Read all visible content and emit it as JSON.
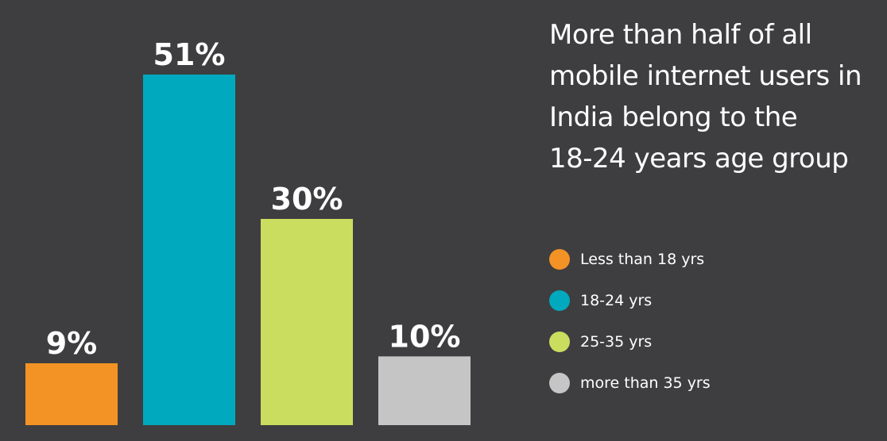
{
  "colors": {
    "background": "#3e3e40",
    "text": "#ffffff"
  },
  "headline": {
    "lines": [
      "More than half of all",
      "mobile internet users in",
      "India belong to the",
      "18-24 years age group"
    ]
  },
  "chart_data": {
    "type": "bar",
    "title": "More than half of all mobile internet users in India belong to the 18-24 years age group",
    "categories": [
      "Less than 18 yrs",
      "18-24 yrs",
      "25-35 yrs",
      "more than 35 yrs"
    ],
    "values": [
      9,
      51,
      30,
      10
    ],
    "value_labels": [
      "9%",
      "51%",
      "30%",
      "10%"
    ],
    "unit": "%",
    "colors": [
      "#f39325",
      "#00a9bd",
      "#cbdd5e",
      "#c5c5c5"
    ],
    "ylim": [
      0,
      51
    ],
    "grid": false,
    "legend_position": "right",
    "legend": [
      {
        "label": "Less than 18 yrs",
        "color": "#f39325"
      },
      {
        "label": "18-24 yrs",
        "color": "#00a9bd"
      },
      {
        "label": "25-35 yrs",
        "color": "#cbdd5e"
      },
      {
        "label": "more than 35 yrs",
        "color": "#c5c5c5"
      }
    ]
  }
}
